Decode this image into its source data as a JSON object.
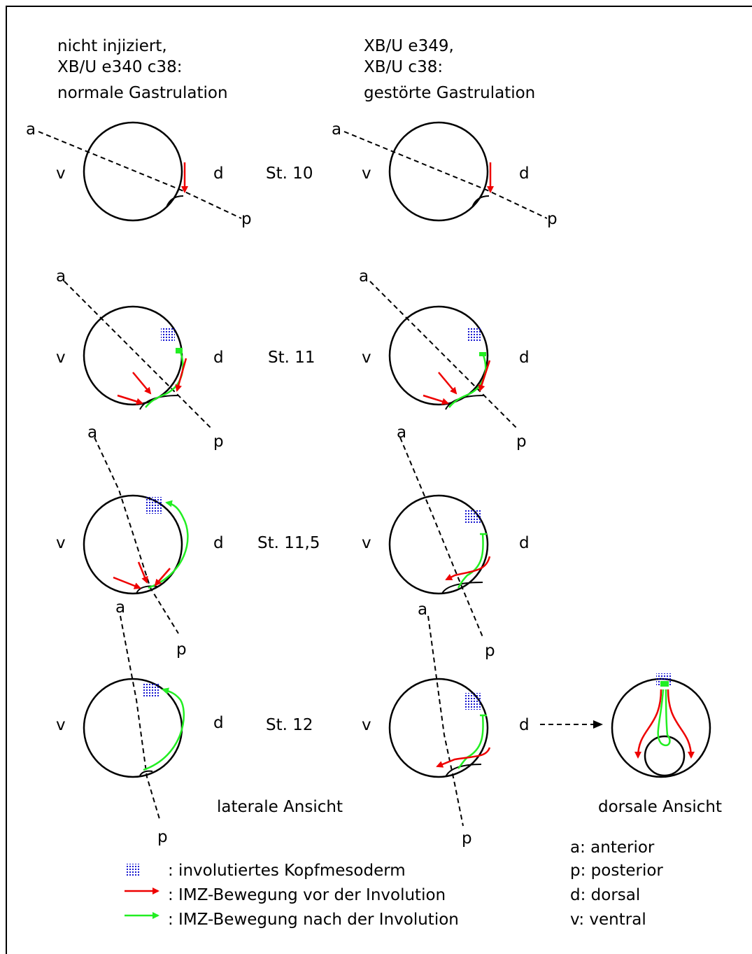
{
  "headers": [
    {
      "lines": [
        "nicht injiziert,",
        "XB/U  e340  c38:",
        "normale Gastrulation"
      ]
    },
    {
      "lines": [
        "XB/U  e349,",
        "XB/U  c38:",
        "gestörte Gastrulation"
      ]
    }
  ],
  "stages": [
    "St. 10",
    "St. 11",
    "St. 11,5",
    "St. 12"
  ],
  "letters": {
    "a": "a",
    "p": "p",
    "v": "v",
    "d": "d"
  },
  "views": {
    "lateral": "laterale Ansicht",
    "dorsal": "dorsale Ansicht"
  },
  "legend": [
    ": involutiertes Kopfmesoderm",
    ": IMZ-Bewegung vor der Involution",
    ": IMZ-Bewegung nach der Involution"
  ],
  "key": [
    "a: anterior",
    "p: posterior",
    "d: dorsal",
    "v: ventral"
  ]
}
